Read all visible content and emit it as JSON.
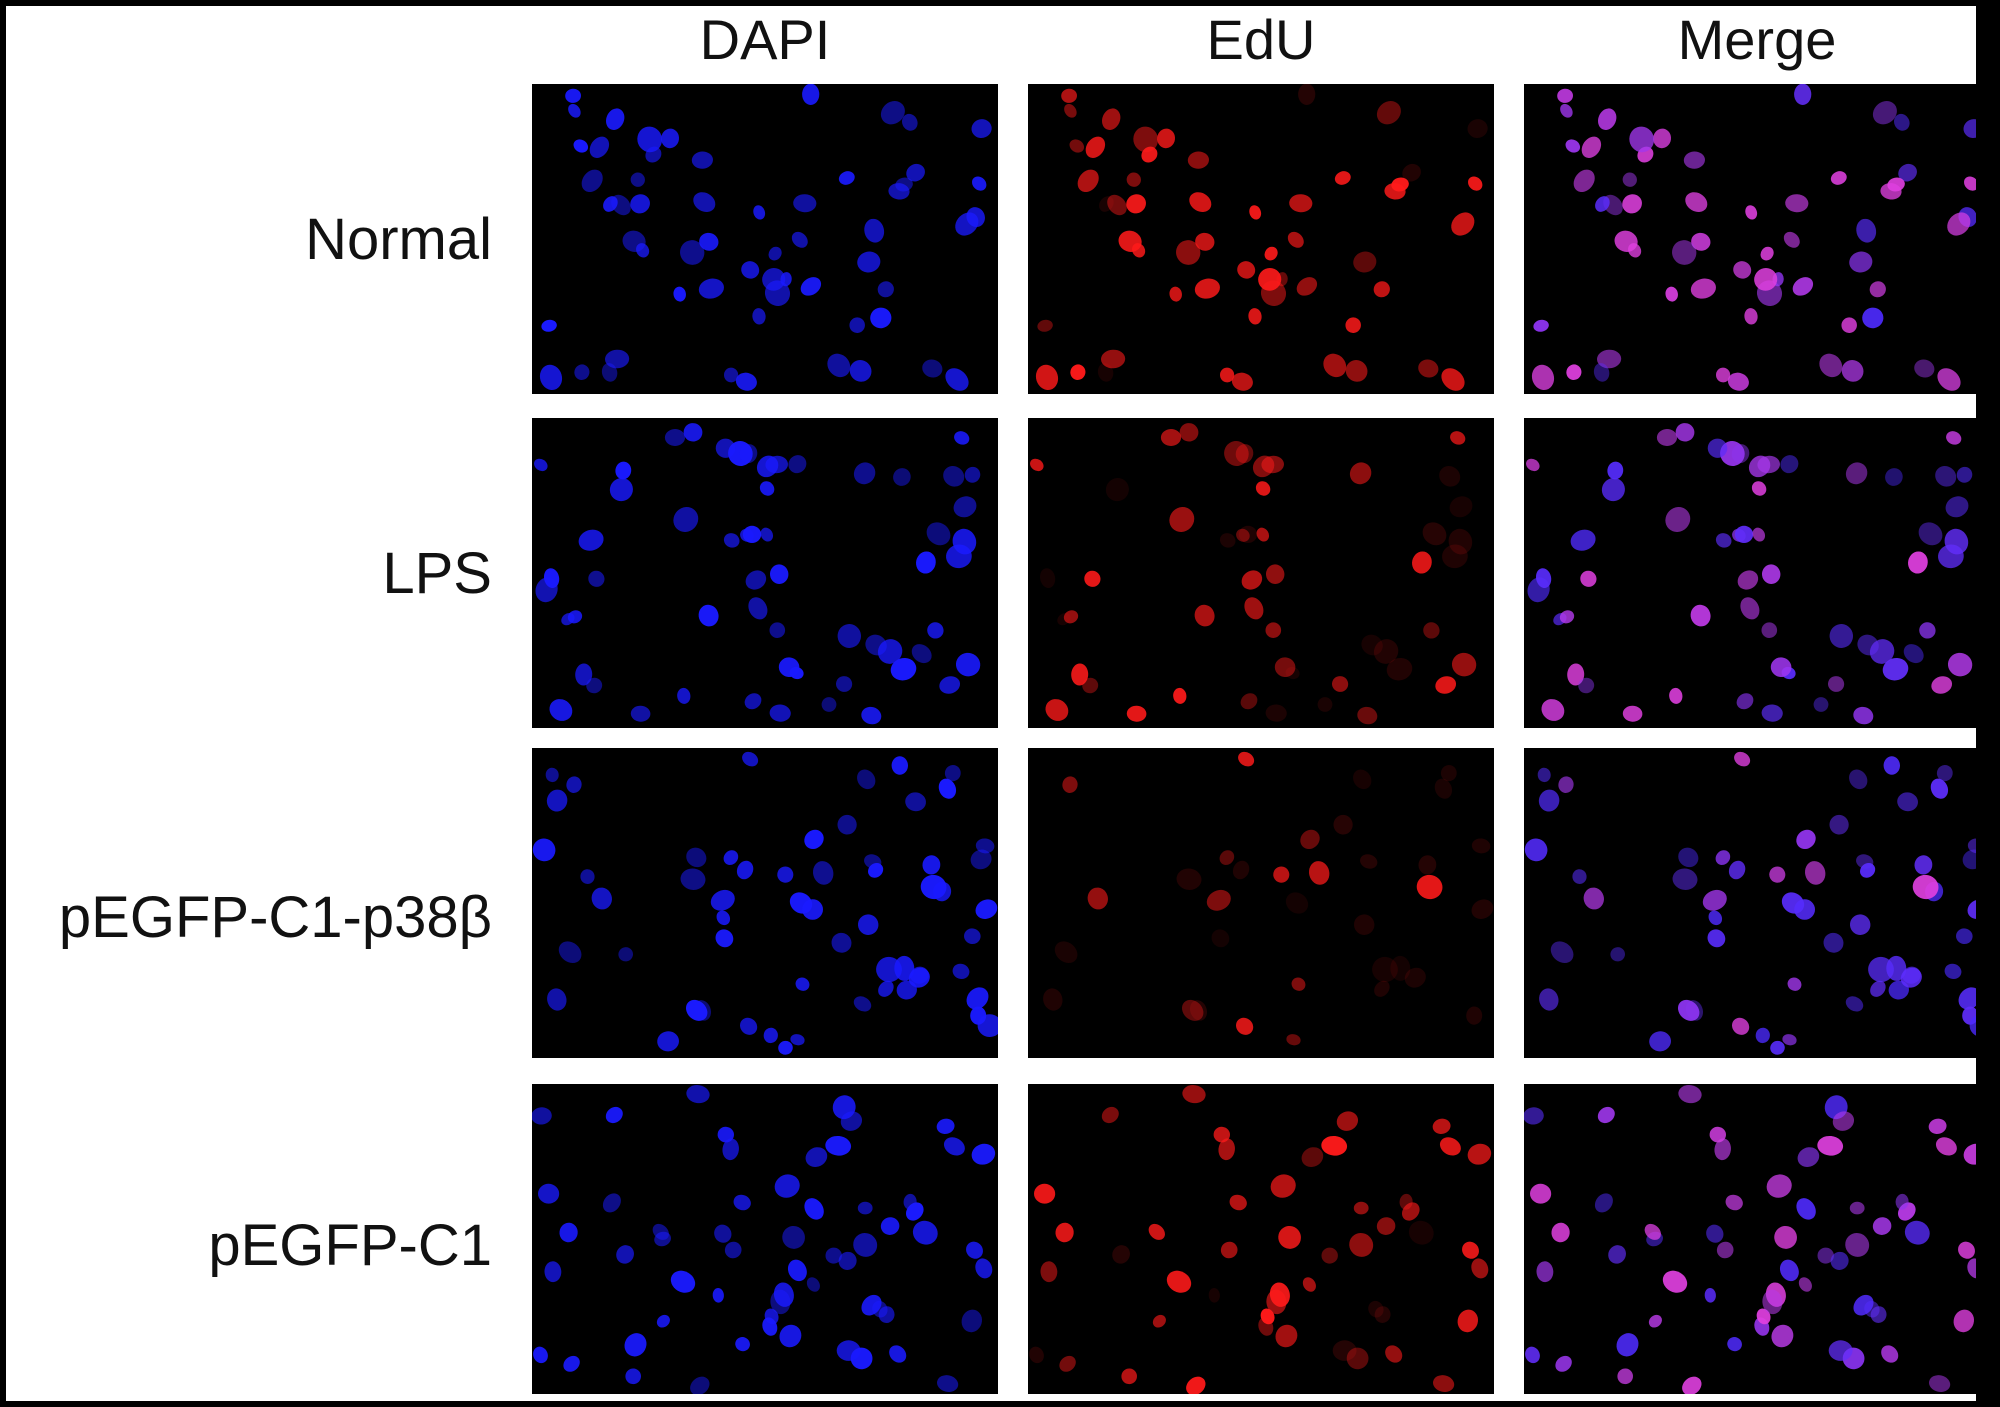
{
  "figure": {
    "columns": [
      {
        "label": "DAPI",
        "channel": "dapi"
      },
      {
        "label": "EdU",
        "channel": "edu"
      },
      {
        "label": "Merge",
        "channel": "merge"
      }
    ],
    "rows": [
      {
        "label": "Normal",
        "edu_level": 0.85
      },
      {
        "label": "LPS",
        "edu_level": 0.6
      },
      {
        "label": "pEGFP-C1-p38β",
        "edu_level": 0.2
      },
      {
        "label": "pEGFP-C1",
        "edu_level": 0.65
      }
    ]
  },
  "colors": {
    "dapi": "#1a1aff",
    "edu": "#ff1a1a",
    "merge_strong": "#e040e0",
    "merge_weak": "#4a2aff",
    "panel_background": "#000000",
    "text": "#111111"
  }
}
